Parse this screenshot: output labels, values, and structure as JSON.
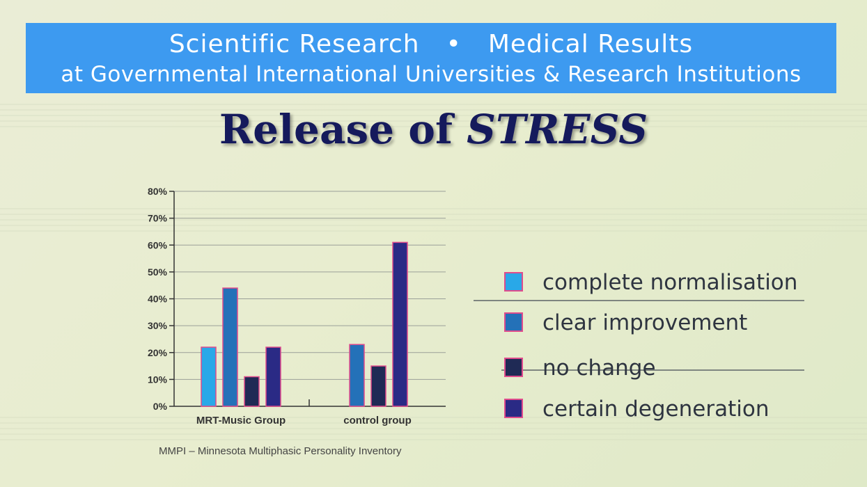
{
  "header": {
    "line1_left": "Scientific Research",
    "line1_bullet": "•",
    "line1_right": "Medical Results",
    "line2": "at Governmental International Universities & Research Institutions"
  },
  "title": {
    "plain": "Release of",
    "emphasis": "STRESS"
  },
  "caption": "MMPI – Minnesota Multiphasic Personality Inventory",
  "colors": {
    "complete_normalisation": "#29a8e8",
    "clear_improvement": "#2471b8",
    "no_change": "#1f2a55",
    "certain_degeneration": "#2a2a85",
    "bar_border": "#e04b8c",
    "header_bg": "#3d9af0",
    "title_text": "#151a5c"
  },
  "chart_data": {
    "type": "bar",
    "categories": [
      "MRT-Music Group",
      "control group"
    ],
    "series": [
      {
        "name": "complete normalisation",
        "values": [
          22,
          0
        ]
      },
      {
        "name": "clear improvement",
        "values": [
          44,
          23
        ]
      },
      {
        "name": "no change",
        "values": [
          11,
          15
        ]
      },
      {
        "name": "certain degeneration",
        "values": [
          22,
          61
        ]
      }
    ],
    "ylim": [
      0,
      80
    ],
    "yticks": [
      "0%",
      "10%",
      "20%",
      "30%",
      "40%",
      "50%",
      "60%",
      "70%",
      "80%"
    ],
    "grid": true,
    "legend_position": "right"
  }
}
